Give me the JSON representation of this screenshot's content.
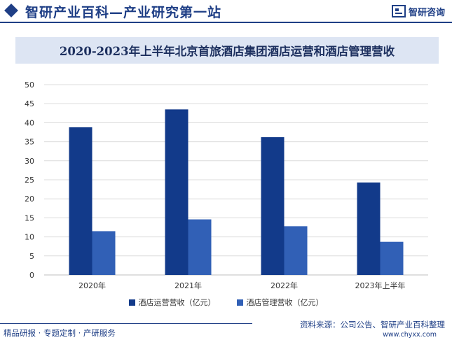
{
  "header": {
    "site_title": "智研产业百科—产业研究第一站",
    "brand_name": "智研咨询"
  },
  "chart_data": {
    "type": "bar",
    "title": "2020-2023年上半年北京首旅酒店集团酒店运营和酒店管理营收",
    "categories": [
      "2020年",
      "2021年",
      "2022年",
      "2023年上半年"
    ],
    "series": [
      {
        "name": "酒店运营营收（亿元）",
        "values": [
          38.8,
          43.5,
          36.2,
          24.3
        ],
        "color": "#123a8a"
      },
      {
        "name": "酒店管理营收（亿元）",
        "values": [
          11.5,
          14.6,
          12.8,
          8.7
        ],
        "color": "#3160b6"
      }
    ],
    "y_ticks": [
      0,
      5,
      10,
      15,
      20,
      25,
      30,
      35,
      40,
      45,
      50
    ],
    "ylim": [
      0,
      50
    ],
    "grid": true,
    "legend_position": "bottom"
  },
  "footer": {
    "left_text": "精品研报 · 专题定制 · 产研服务",
    "source_text": "资料来源：公司公告、智研产业百科整理",
    "url_text": "www.chyxx.com"
  }
}
